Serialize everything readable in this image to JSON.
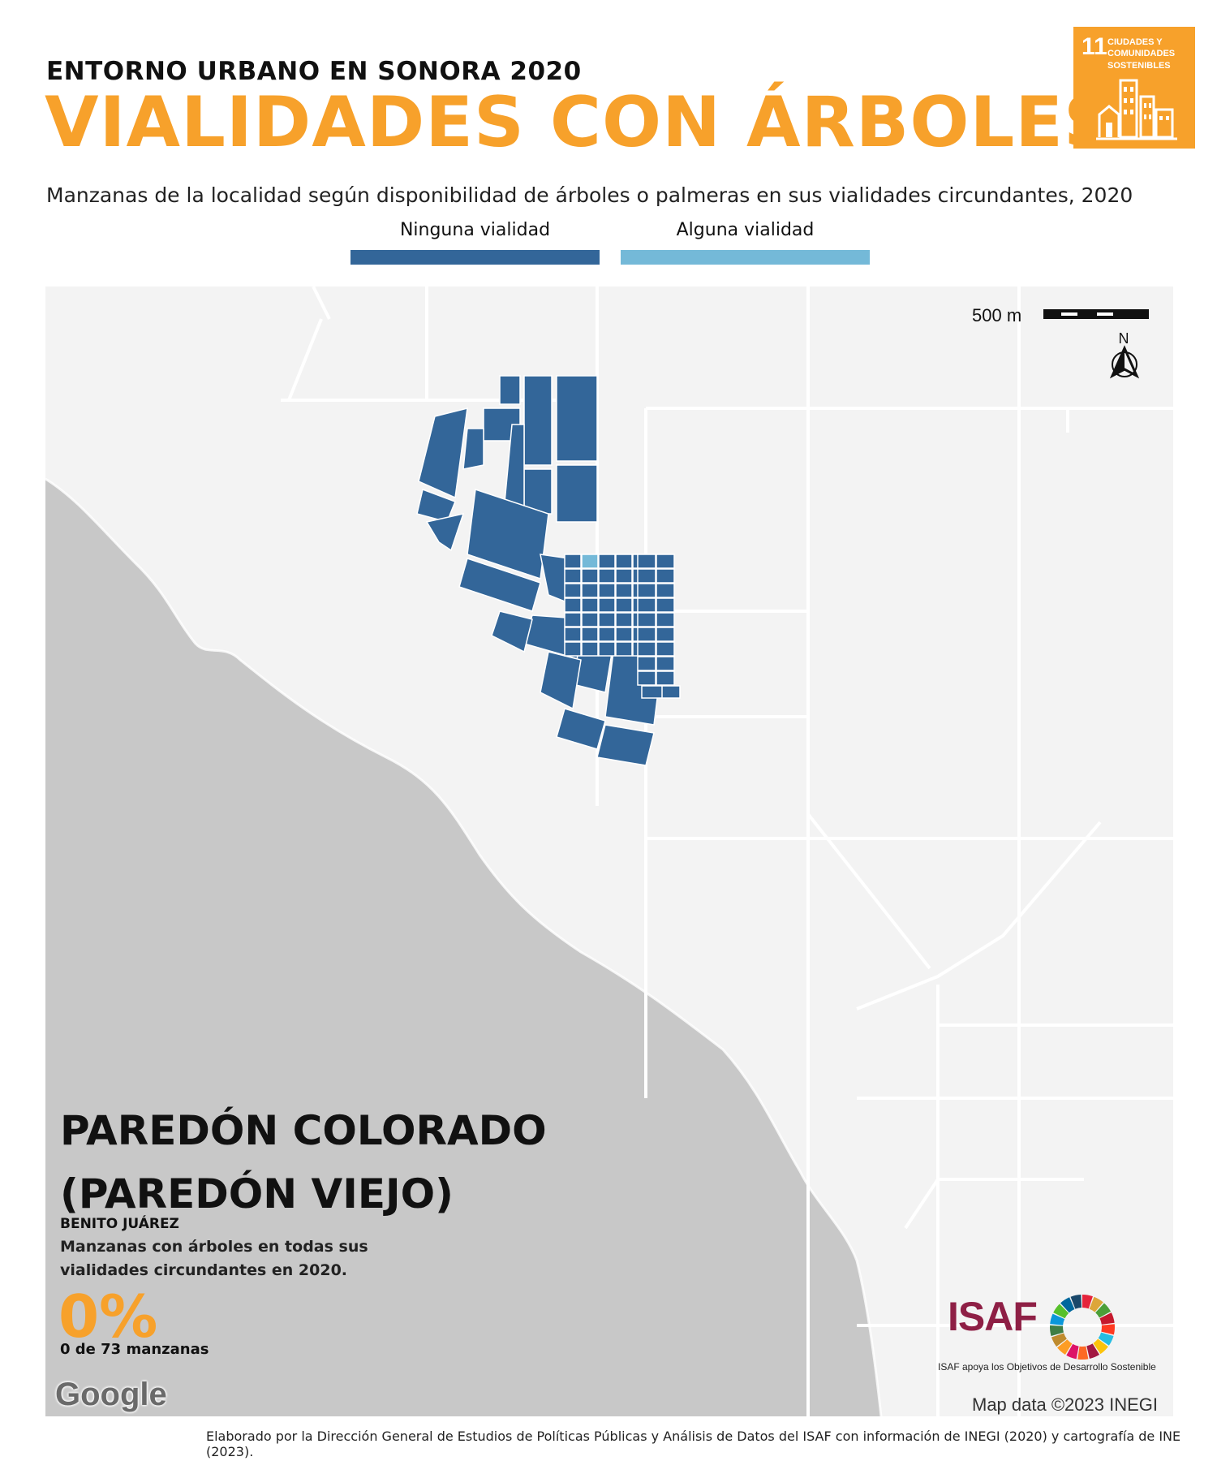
{
  "header": {
    "kicker": "ENTORNO URBANO EN SONORA 2020",
    "title": "VIALIDADES CON ÁRBOLES",
    "subtitle": "Manzanas de la localidad según disponibilidad de árboles o palmeras en sus vialidades circundantes, 2020"
  },
  "legend": {
    "items": [
      {
        "label": "Ninguna vialidad",
        "color": "#336699"
      },
      {
        "label": "Alguna vialidad",
        "color": "#74b9d8"
      }
    ]
  },
  "sdg_badge": {
    "number": "11",
    "text": "CIUDADES Y COMUNIDADES SOSTENIBLES",
    "color": "#f7a12b"
  },
  "map": {
    "scale_label": "500 m",
    "north_label": "N",
    "land_color": "#f3f3f3",
    "water_color": "#c8c8c8",
    "road_color": "#ffffff",
    "block_color": "#336699",
    "highlight_block_color": "#74b9d8"
  },
  "locality": {
    "name_line1": "PAREDÓN COLORADO",
    "name_line2": "(PAREDÓN VIEJO)",
    "municipality": "BENITO JUÁREZ",
    "description": "Manzanas con árboles en todas sus vialidades circundantes en 2020.",
    "percent": "0%",
    "count": "0 de 73 manzanas"
  },
  "attribution": {
    "google": "Google",
    "map_data": "Map data ©2023 INEGI",
    "isaf_logo": "ISAF",
    "isaf_note": "ISAF apoya los Objetivos de Desarrollo Sostenible"
  },
  "footer": "Elaborado por la Dirección General de Estudios de Políticas Públicas y Análisis de Datos del ISAF con información de INEGI (2020) y cartografía de INE (2023)."
}
